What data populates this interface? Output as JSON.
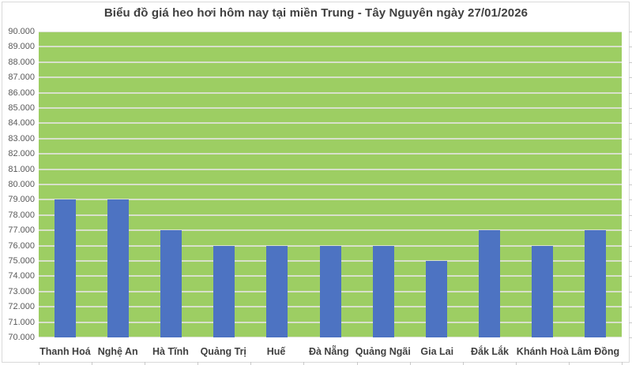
{
  "colors": {
    "bar": "#4D73C2",
    "plot_bg": "#9DCE63",
    "gridline": "#D8E0CB",
    "frame_border": "#D9D9D9",
    "title_text": "#404040",
    "axis_text": "#595959",
    "category_text": "#404040",
    "tick": "#C9C9C9"
  },
  "chart_data": {
    "type": "bar",
    "title": "Biểu đồ giá heo hơi hôm nay tại miền Trung - Tây Nguyên ngày 27/01/2026",
    "categories": [
      "Thanh Hoá",
      "Nghệ An",
      "Hà Tĩnh",
      "Quảng Trị",
      "Huế",
      "Đà Nẵng",
      "Quảng Ngãi",
      "Gia Lai",
      "Đắk Lắk",
      "Khánh Hoà",
      "Lâm Đồng"
    ],
    "values": [
      79000,
      79000,
      77000,
      76000,
      76000,
      76000,
      76000,
      75000,
      77000,
      76000,
      77000
    ],
    "xlabel": "",
    "ylabel": "",
    "ylim": [
      70000,
      90000
    ],
    "ytick_step": 1000,
    "ytick_labels_top_to_bottom": [
      "90.000",
      "89.000",
      "88.000",
      "87.000",
      "86.000",
      "85.000",
      "84.000",
      "83.000",
      "82.000",
      "81.000",
      "80.000",
      "79.000",
      "78.000",
      "77.000",
      "76.000",
      "75.000",
      "74.000",
      "73.000",
      "72.000",
      "71.000",
      "70.000"
    ],
    "grid": true,
    "legend": false,
    "plot_bg": "#9DCE63",
    "bar_color": "#4D73C2"
  }
}
